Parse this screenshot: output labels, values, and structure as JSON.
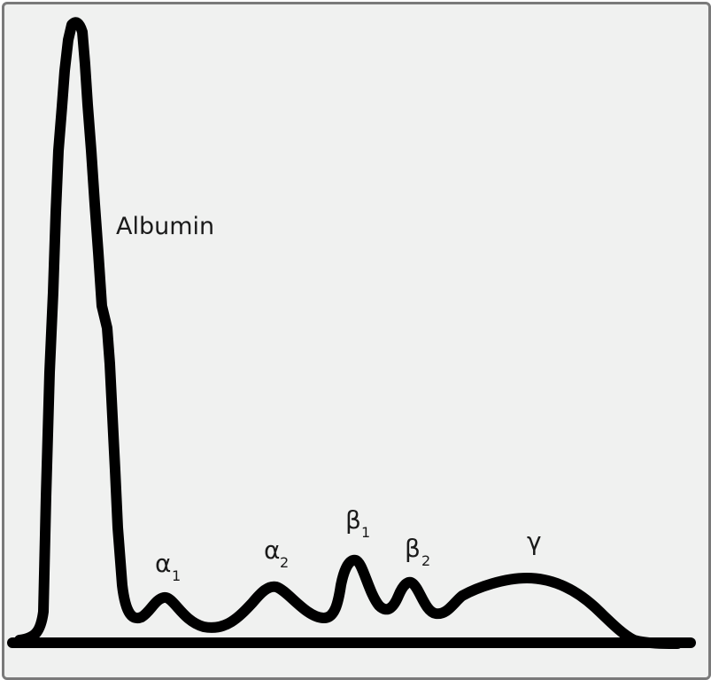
{
  "diagram": {
    "peaks": [
      {
        "symbol": "Albumin",
        "subscript": ""
      },
      {
        "symbol": "α",
        "subscript": "1"
      },
      {
        "symbol": "α",
        "subscript": "2"
      },
      {
        "symbol": "β",
        "subscript": "1"
      },
      {
        "symbol": "β",
        "subscript": "2"
      },
      {
        "symbol": "γ",
        "subscript": ""
      }
    ],
    "colors": {
      "background": "#f0f1f0",
      "stroke": "#000000",
      "border": "#7a7a7a",
      "text": "#1a1a1a"
    }
  }
}
